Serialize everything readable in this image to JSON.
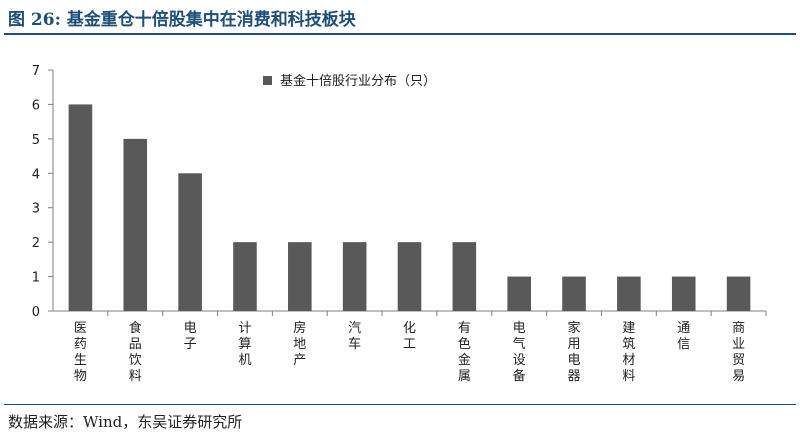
{
  "header": {
    "title": "图 26:  基金重仓十倍股集中在消费和科技板块"
  },
  "footer": {
    "source": "数据来源：Wind，东吴证券研究所"
  },
  "chart_data": {
    "type": "bar",
    "title": "",
    "xlabel": "",
    "ylabel": "",
    "ylim": [
      0,
      7
    ],
    "yticks": [
      0,
      1,
      2,
      3,
      4,
      5,
      6,
      7
    ],
    "grid": false,
    "legend_position": "top-center",
    "categories": [
      "医药生物",
      "食品饮料",
      "电子",
      "计算机",
      "房地产",
      "汽车",
      "化工",
      "有色金属",
      "电气设备",
      "家用电器",
      "建筑材料",
      "通信",
      "商业贸易"
    ],
    "series": [
      {
        "name": "基金十倍股行业分布（只）",
        "color": "#595959",
        "values": [
          6,
          5,
          4,
          2,
          2,
          2,
          2,
          2,
          1,
          1,
          1,
          1,
          1
        ]
      }
    ]
  }
}
